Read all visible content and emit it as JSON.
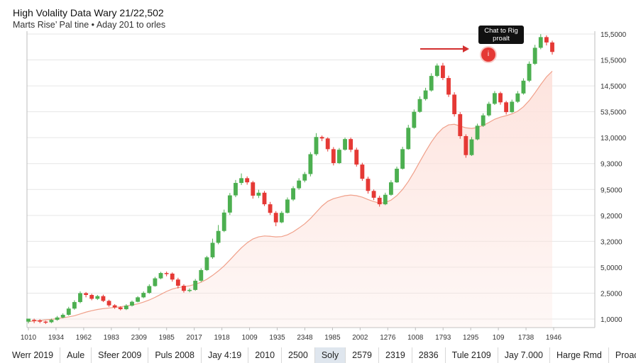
{
  "header": {
    "title": "High Volality Data Wary  21/22,502",
    "subtitle": "Marts Rise’ Pal tine •  Aday 201 to orles"
  },
  "callout": {
    "label": "Chat to Rig proalt",
    "dot_label": "i"
  },
  "colors": {
    "up": "#4caf50",
    "down": "#e53935",
    "trend": "#f0a08a",
    "area": "#fde2dc",
    "grid": "#e6e6e6",
    "axis": "#bdbdbd"
  },
  "bottom_bar": [
    {
      "label": "Werr 2019",
      "active": false
    },
    {
      "label": "Aule",
      "active": false
    },
    {
      "label": "Sfeer 2009",
      "active": false
    },
    {
      "label": "Puls  2008",
      "active": false
    },
    {
      "label": "Jay  4:19",
      "active": false
    },
    {
      "label": "2010",
      "active": false
    },
    {
      "label": "2500",
      "active": false
    },
    {
      "label": "Soly",
      "active": true
    },
    {
      "label": "2579",
      "active": false
    },
    {
      "label": "2319",
      "active": false
    },
    {
      "label": "2836",
      "active": false
    },
    {
      "label": "Tule  2109",
      "active": false
    },
    {
      "label": "Jay  7.000",
      "active": false
    },
    {
      "label": "Harge Rmd",
      "active": false
    },
    {
      "label": "Proact",
      "active": false
    }
  ],
  "chart_data": {
    "type": "candlestick",
    "title": "High Volality Data Wary  21/22,502",
    "subtitle": "Marts Rise’ Pal tine •  Aday 201 to orles",
    "x_tick_labels": [
      "1010",
      "1934",
      "1962",
      "1983",
      "2309",
      "1985",
      "2017",
      "1918",
      "1009",
      "1935",
      "2348",
      "1985",
      "2002",
      "1276",
      "1008",
      "1793",
      "1295",
      "109",
      "1738",
      "1946"
    ],
    "y_tick_labels": [
      "15,5000",
      "15,5000",
      "14,5000",
      "53,5000",
      "13,0000",
      "9,3000",
      "9,5000",
      "9,2000",
      "3,2000",
      "5,0000",
      "2,5000",
      "1,0000"
    ],
    "y_range": [
      0,
      100
    ],
    "y_axis_side": "right",
    "grid": true,
    "legend": "none",
    "candles": [
      [
        2.0,
        3.0,
        1.4,
        2.6
      ],
      [
        2.6,
        2.4,
        1.5,
        3.0
      ],
      [
        2.4,
        2.0,
        1.5,
        2.8
      ],
      [
        2.0,
        1.8,
        1.2,
        2.3
      ],
      [
        1.8,
        2.6,
        1.5,
        3.0
      ],
      [
        2.6,
        3.4,
        2.3,
        3.9
      ],
      [
        3.4,
        4.3,
        3.1,
        4.8
      ],
      [
        4.3,
        6.4,
        4.0,
        7.0
      ],
      [
        6.4,
        8.6,
        6.0,
        9.2
      ],
      [
        8.6,
        11.6,
        8.2,
        12.2
      ],
      [
        11.6,
        11.0,
        10.2,
        12.0
      ],
      [
        11.0,
        9.7,
        9.2,
        11.4
      ],
      [
        9.7,
        10.6,
        9.3,
        11.0
      ],
      [
        10.6,
        9.0,
        8.6,
        11.1
      ],
      [
        9.0,
        7.5,
        7.0,
        9.4
      ],
      [
        7.5,
        6.8,
        6.3,
        7.9
      ],
      [
        6.8,
        6.2,
        5.8,
        7.2
      ],
      [
        6.2,
        7.4,
        5.9,
        7.9
      ],
      [
        7.4,
        8.7,
        7.1,
        9.1
      ],
      [
        8.7,
        10.2,
        8.5,
        10.6
      ],
      [
        10.2,
        11.7,
        9.9,
        12.2
      ],
      [
        11.7,
        14.0,
        11.4,
        14.6
      ],
      [
        14.0,
        16.6,
        13.8,
        17.1
      ],
      [
        16.6,
        18.4,
        16.3,
        18.8
      ],
      [
        18.4,
        18.2,
        17.3,
        18.9
      ],
      [
        18.2,
        16.2,
        15.5,
        18.6
      ],
      [
        16.2,
        14.1,
        13.2,
        16.8
      ],
      [
        14.1,
        12.4,
        11.8,
        14.6
      ],
      [
        12.4,
        12.7,
        11.9,
        13.2
      ],
      [
        12.7,
        15.8,
        12.4,
        16.4
      ],
      [
        15.8,
        19.4,
        15.4,
        20.0
      ],
      [
        19.4,
        23.7,
        19.1,
        24.2
      ],
      [
        23.7,
        28.6,
        23.2,
        30.0
      ],
      [
        28.6,
        32.6,
        28.1,
        34.6
      ],
      [
        32.6,
        38.8,
        32.2,
        39.8
      ],
      [
        38.8,
        44.6,
        38.0,
        45.4
      ],
      [
        44.6,
        48.8,
        44.0,
        49.8
      ],
      [
        48.8,
        50.4,
        48.1,
        52.0
      ],
      [
        50.4,
        49.0,
        48.2,
        51.0
      ],
      [
        49.0,
        44.5,
        43.5,
        49.5
      ],
      [
        44.5,
        45.5,
        43.7,
        46.5
      ],
      [
        45.5,
        41.6,
        41.0,
        46.1
      ],
      [
        41.6,
        38.7,
        38.0,
        42.4
      ],
      [
        38.7,
        35.5,
        34.2,
        39.3
      ],
      [
        35.5,
        38.7,
        35.2,
        39.3
      ],
      [
        38.7,
        43.2,
        38.5,
        43.9
      ],
      [
        43.2,
        47.0,
        42.7,
        47.7
      ],
      [
        47.0,
        49.6,
        46.5,
        50.4
      ],
      [
        49.6,
        51.8,
        49.0,
        52.5
      ],
      [
        51.8,
        58.5,
        51.0,
        59.2
      ],
      [
        58.5,
        64.3,
        58.0,
        65.6
      ],
      [
        64.3,
        63.8,
        62.9,
        64.8
      ],
      [
        63.8,
        60.2,
        59.4,
        64.2
      ],
      [
        60.2,
        55.5,
        54.7,
        60.9
      ],
      [
        55.5,
        60.0,
        55.2,
        60.6
      ],
      [
        60.0,
        63.6,
        59.7,
        64.1
      ],
      [
        63.6,
        60.0,
        59.2,
        64.1
      ],
      [
        60.0,
        55.0,
        54.3,
        60.7
      ],
      [
        55.0,
        50.2,
        49.5,
        55.6
      ],
      [
        50.2,
        46.1,
        45.2,
        50.9
      ],
      [
        46.1,
        43.8,
        43.0,
        46.6
      ],
      [
        43.8,
        41.6,
        40.8,
        44.5
      ],
      [
        41.6,
        44.8,
        41.3,
        45.5
      ],
      [
        44.8,
        49.0,
        44.5,
        49.7
      ],
      [
        49.0,
        53.6,
        48.8,
        54.3
      ],
      [
        53.6,
        60.2,
        53.3,
        61.0
      ],
      [
        60.2,
        67.4,
        60.0,
        68.4
      ],
      [
        67.4,
        72.8,
        67.1,
        73.6
      ],
      [
        72.8,
        77.1,
        72.5,
        78.0
      ],
      [
        77.1,
        80.0,
        76.6,
        80.9
      ],
      [
        80.0,
        84.9,
        79.6,
        85.8
      ],
      [
        84.9,
        88.4,
        84.5,
        89.1
      ],
      [
        88.4,
        84.2,
        83.5,
        89.3
      ],
      [
        84.2,
        78.6,
        77.8,
        85.0
      ],
      [
        78.6,
        72.0,
        71.2,
        79.4
      ],
      [
        72.0,
        64.6,
        63.7,
        72.7
      ],
      [
        64.6,
        58.2,
        57.3,
        65.2
      ],
      [
        58.2,
        63.5,
        57.9,
        64.3
      ],
      [
        63.5,
        68.1,
        63.2,
        68.8
      ],
      [
        68.1,
        71.6,
        67.7,
        72.3
      ],
      [
        71.6,
        75.5,
        71.2,
        76.2
      ],
      [
        75.5,
        79.1,
        75.1,
        79.8
      ],
      [
        79.1,
        76.0,
        75.2,
        79.6
      ],
      [
        76.0,
        72.7,
        71.9,
        76.5
      ],
      [
        72.7,
        76.2,
        72.4,
        76.9
      ],
      [
        76.2,
        79.0,
        75.8,
        79.8
      ],
      [
        79.0,
        83.3,
        78.6,
        84.1
      ],
      [
        83.3,
        89.0,
        82.8,
        89.8
      ],
      [
        89.0,
        94.4,
        88.6,
        95.4
      ],
      [
        94.4,
        98.0,
        93.9,
        99.0
      ],
      [
        98.0,
        96.2,
        95.2,
        98.6
      ],
      [
        96.2,
        93.0,
        92.1,
        96.8
      ]
    ],
    "trend": [
      2.0,
      2.2,
      2.4,
      2.6,
      2.8,
      3.0,
      3.3,
      3.6,
      4.0,
      4.6,
      5.2,
      5.7,
      6.1,
      6.4,
      6.6,
      6.8,
      7.0,
      7.3,
      7.6,
      8.0,
      8.6,
      9.3,
      10.2,
      11.2,
      12.2,
      13.0,
      13.5,
      13.8,
      14.1,
      14.6,
      15.3,
      16.3,
      17.6,
      19.1,
      20.8,
      22.8,
      24.9,
      26.9,
      28.6,
      29.9,
      30.6,
      30.9,
      30.8,
      30.6,
      30.7,
      31.3,
      32.3,
      33.6,
      35.0,
      36.8,
      38.9,
      41.0,
      42.6,
      43.5,
      44.0,
      44.5,
      44.7,
      44.5,
      44.0,
      43.2,
      42.5,
      42.0,
      42.2,
      43.0,
      44.5,
      46.6,
      49.3,
      52.5,
      56.0,
      59.4,
      62.6,
      65.3,
      67.3,
      68.4,
      68.6,
      68.0,
      67.4,
      67.2,
      67.5,
      68.2,
      69.2,
      70.3,
      71.0,
      71.5,
      72.1,
      73.0,
      74.5,
      76.6,
      79.2,
      82.0,
      84.6,
      86.5
    ]
  }
}
